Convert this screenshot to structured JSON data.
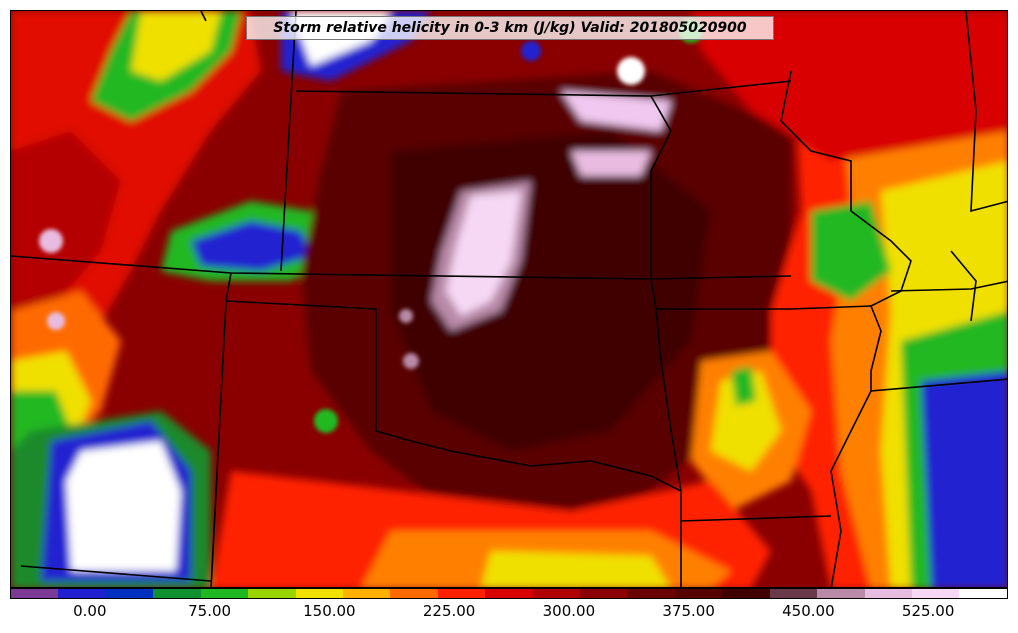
{
  "title": "Storm relative helicity in 0-3 km (J/kg) Valid: 201805020900",
  "colorbar": {
    "colors": [
      "#7b3a96",
      "#2020d0",
      "#0030c0",
      "#109030",
      "#20b820",
      "#9ad400",
      "#f0e000",
      "#ffb000",
      "#ff6a00",
      "#ff2000",
      "#d80000",
      "#b00000",
      "#8c0000",
      "#6a0000",
      "#560000",
      "#400000",
      "#6b3a4a",
      "#b88aa8",
      "#e8bce0",
      "#f6d8f4",
      "#ffffff"
    ],
    "tick_labels": [
      "0.00",
      "75.00",
      "150.00",
      "225.00",
      "300.00",
      "375.00",
      "450.00",
      "525.00"
    ],
    "tick_values": [
      0,
      75,
      150,
      225,
      300,
      375,
      450,
      525
    ],
    "range": [
      -50,
      575
    ]
  },
  "legend_colors": {
    "map_base": "#6e0000",
    "boundary": "#000000"
  }
}
